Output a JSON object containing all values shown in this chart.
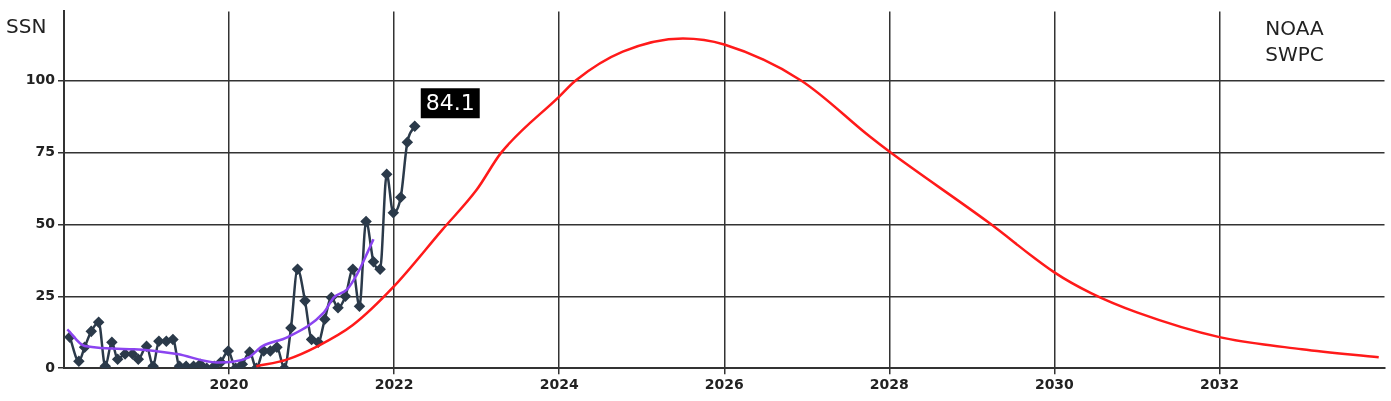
{
  "chart_data": {
    "type": "line",
    "ylabel": "SSN",
    "xlim": [
      2018,
      2034
    ],
    "ylim": [
      0,
      124
    ],
    "xticks": [
      2020,
      2022,
      2024,
      2026,
      2028,
      2030,
      2032
    ],
    "yticks": [
      0,
      25,
      50,
      75,
      100
    ],
    "grid": true,
    "legend": false,
    "annotations": [
      "NOAA SWPC"
    ],
    "series": [
      {
        "color": "#ff1a1a",
        "marker": "none",
        "x": [
          2020.33,
          2020.7,
          2021.07,
          2021.5,
          2022,
          2022.58,
          2023,
          2023.3,
          2024,
          2024.2,
          2024.77,
          2025.5,
          2026,
          2026.93,
          2027.76,
          2028,
          2029.2,
          2030,
          2030.45,
          2031,
          2032,
          2033,
          2033.93
        ],
        "values": [
          0.7,
          3,
          7.6,
          15,
          28.5,
          48,
          62,
          75,
          94.4,
          100,
          110,
          114.6,
          112.5,
          100,
          80.6,
          75.3,
          50.7,
          33.3,
          26,
          19.4,
          10.8,
          6.6,
          3.8
        ]
      },
      {
        "color": "#8b44f0",
        "marker": "none",
        "x": [
          2018.04,
          2018.25,
          2018.85,
          2019.37,
          2019.85,
          2020.24,
          2020.4,
          2020.71,
          2021.15,
          2021.27,
          2021.43,
          2021.55,
          2021.75
        ],
        "values": [
          13.5,
          7.7,
          6.6,
          4.9,
          2,
          3.8,
          7.6,
          10.8,
          19.4,
          24.6,
          27.4,
          32.6,
          44.8
        ]
      },
      {
        "color": "#2b3a4a",
        "marker": "diamond",
        "x": [
          2018.07,
          2018.18,
          2018.25,
          2018.33,
          2018.42,
          2018.5,
          2018.58,
          2018.65,
          2018.74,
          2018.83,
          2018.9,
          2019.0,
          2019.08,
          2019.15,
          2019.24,
          2019.32,
          2019.4,
          2019.48,
          2019.57,
          2019.65,
          2019.73,
          2019.82,
          2019.9,
          2019.99,
          2020.08,
          2020.16,
          2020.25,
          2020.33,
          2020.42,
          2020.5,
          2020.58,
          2020.67,
          2020.75,
          2020.83,
          2020.92,
          2021.0,
          2021.08,
          2021.16,
          2021.24,
          2021.32,
          2021.41,
          2021.5,
          2021.58,
          2021.66,
          2021.75,
          2021.83,
          2021.91,
          2021.99,
          2022.08,
          2022.16,
          2022.25
        ],
        "values": [
          10.8,
          2.4,
          7.3,
          12.8,
          16,
          0.7,
          9,
          3.1,
          4.9,
          4.9,
          3.1,
          7.6,
          0.7,
          9.4,
          9.4,
          10,
          0.7,
          0.7,
          0.7,
          1.4,
          0,
          0.7,
          2.1,
          6,
          0,
          1.4,
          5.6,
          0,
          6,
          6,
          7.3,
          0,
          14,
          34.4,
          23.4,
          10,
          9,
          17,
          24.6,
          21,
          25,
          34.4,
          21.5,
          51,
          37,
          34.4,
          67.4,
          54,
          59.4,
          78.5,
          84.1
        ],
        "value_labels": [
          null,
          null,
          null,
          null,
          null,
          null,
          null,
          null,
          null,
          null,
          null,
          null,
          null,
          null,
          null,
          null,
          null,
          null,
          null,
          null,
          null,
          null,
          null,
          null,
          null,
          null,
          null,
          null,
          null,
          null,
          null,
          null,
          null,
          null,
          null,
          null,
          null,
          null,
          null,
          null,
          null,
          null,
          null,
          null,
          null,
          null,
          null,
          null,
          null,
          null,
          "84.1"
        ]
      }
    ]
  }
}
